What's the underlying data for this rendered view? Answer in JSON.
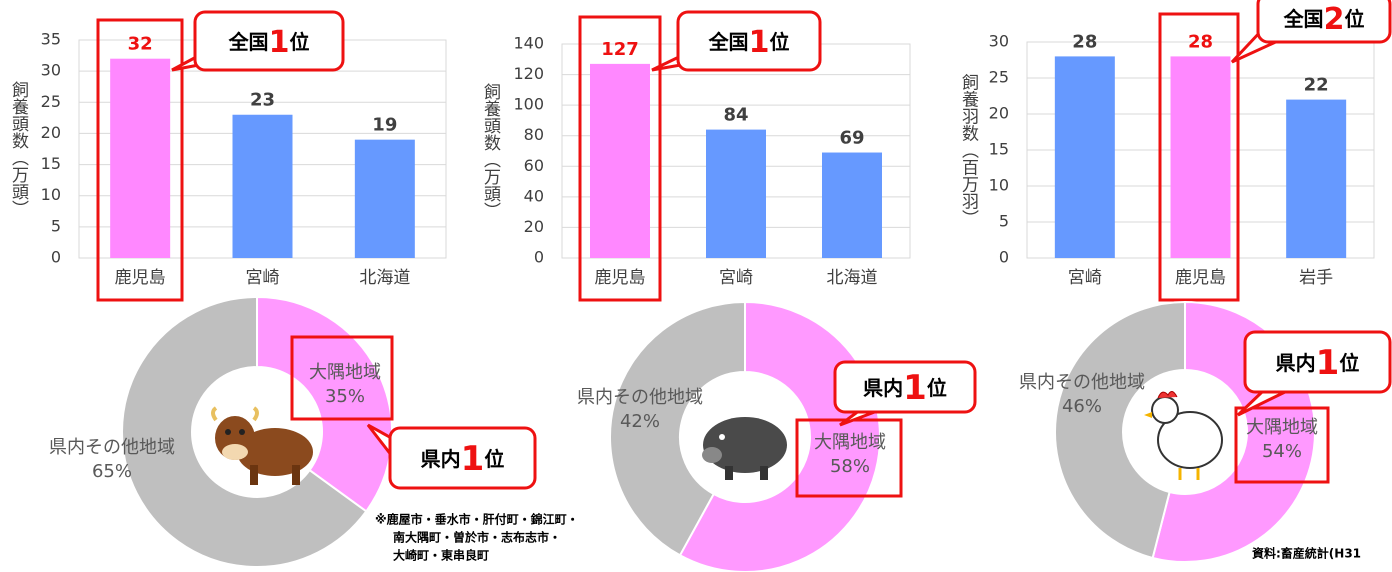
{
  "chart_data": [
    {
      "type": "bar",
      "y_label": "飼養頭数（万頭）",
      "categories": [
        "鹿児島",
        "宮崎",
        "北海道"
      ],
      "values": [
        32,
        23,
        19
      ],
      "colors": [
        "#ff88ff",
        "#6699ff",
        "#6699ff"
      ],
      "highlight_index": 0,
      "ylim": [
        0,
        35
      ],
      "yticks": [
        0,
        5,
        10,
        15,
        20,
        25,
        30,
        35
      ],
      "grid": true,
      "callout": [
        "全国",
        "1",
        "位"
      ]
    },
    {
      "type": "bar",
      "y_label": "飼養頭数（万頭）",
      "categories": [
        "鹿児島",
        "宮崎",
        "北海道"
      ],
      "values": [
        127,
        84,
        69
      ],
      "colors": [
        "#ff88ff",
        "#6699ff",
        "#6699ff"
      ],
      "highlight_index": 0,
      "ylim": [
        0,
        140
      ],
      "yticks": [
        0,
        20,
        40,
        60,
        80,
        100,
        120,
        140
      ],
      "grid": true,
      "callout": [
        "全国",
        "1",
        "位"
      ]
    },
    {
      "type": "bar",
      "y_label": "飼養羽数（百万羽）",
      "categories": [
        "宮崎",
        "鹿児島",
        "岩手"
      ],
      "values": [
        28,
        28,
        22
      ],
      "colors": [
        "#6699ff",
        "#ff88ff",
        "#6699ff"
      ],
      "highlight_index": 1,
      "ylim": [
        0,
        30
      ],
      "yticks": [
        0,
        5,
        10,
        15,
        20,
        25,
        30
      ],
      "grid": true,
      "callout": [
        "全国",
        "2",
        "位"
      ]
    },
    {
      "type": "pie",
      "categories": [
        "大隅地域",
        "県内その他地域"
      ],
      "values": [
        35,
        65
      ],
      "value_labels": [
        "35%",
        "65%"
      ],
      "colors": [
        "#ff99ff",
        "#bfbfbf"
      ],
      "callout": [
        "県内",
        "1",
        "位"
      ]
    },
    {
      "type": "pie",
      "categories": [
        "大隅地域",
        "県内その他地域"
      ],
      "values": [
        58,
        42
      ],
      "value_labels": [
        "58%",
        "42%"
      ],
      "colors": [
        "#ff99ff",
        "#bfbfbf"
      ],
      "callout": [
        "県内",
        "1",
        "位"
      ]
    },
    {
      "type": "pie",
      "categories": [
        "大隅地域",
        "県内その他地域"
      ],
      "values": [
        54,
        46
      ],
      "value_labels": [
        "54%",
        "46%"
      ],
      "colors": [
        "#ff99ff",
        "#bfbfbf"
      ],
      "callout": [
        "県内",
        "1",
        "位"
      ]
    }
  ],
  "notes": [
    "※鹿屋市・垂水市・肝付町・錦江町・",
    "南大隅町・曽於市・志布志市・",
    "大崎町・東串良町"
  ],
  "source": "資料:畜産統計(H31"
}
